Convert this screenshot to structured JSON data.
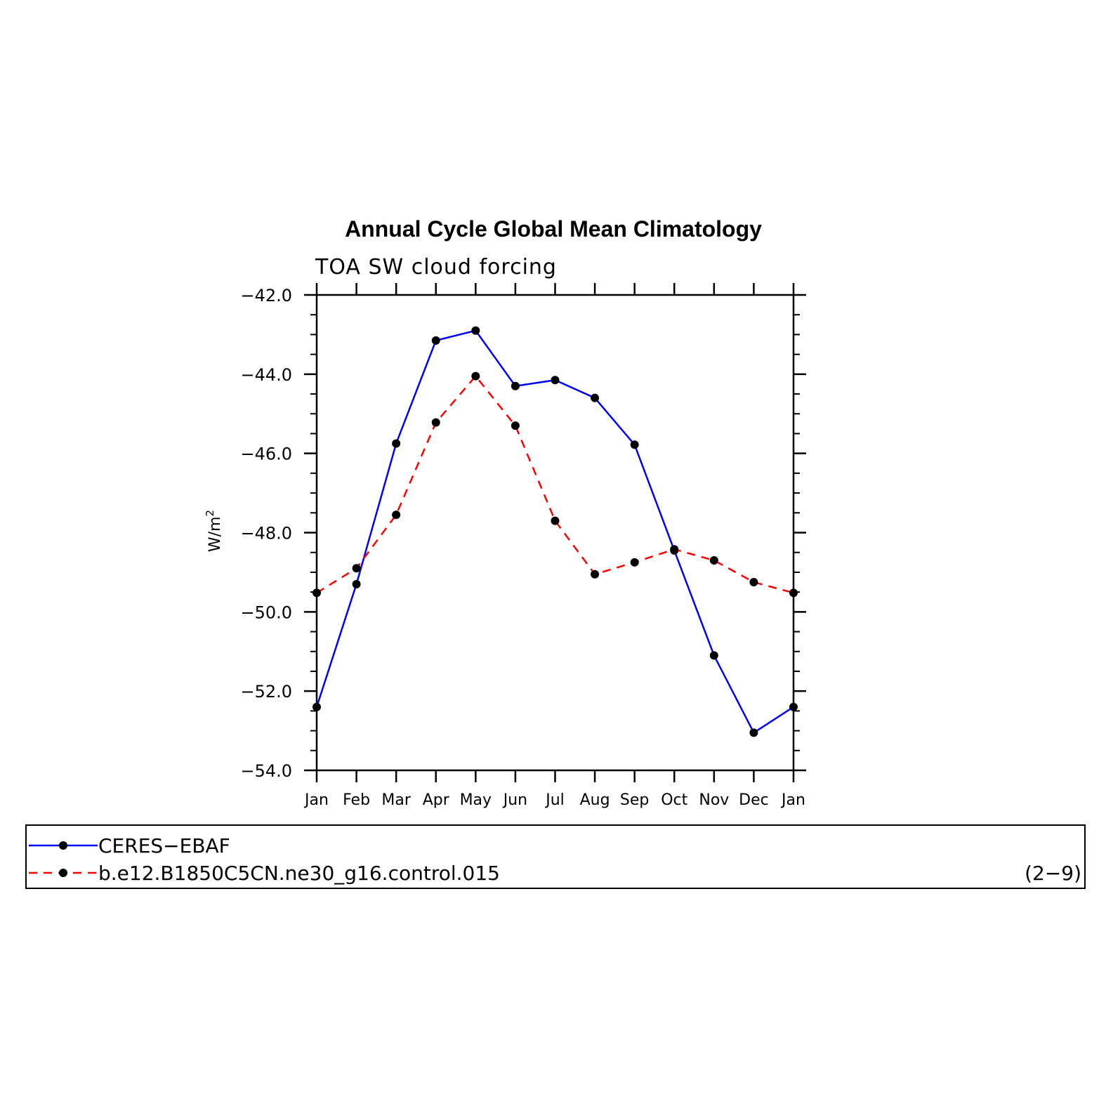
{
  "chart_data": {
    "type": "line",
    "title": "Annual Cycle Global Mean Climatology",
    "subtitle": "TOA SW cloud forcing",
    "ylabel_base": "W/m",
    "ylabel_sup": "2",
    "xlabel": "",
    "categories": [
      "Jan",
      "Feb",
      "Mar",
      "Apr",
      "May",
      "Jun",
      "Jul",
      "Aug",
      "Sep",
      "Oct",
      "Nov",
      "Dec",
      "Jan"
    ],
    "ylim": [
      -54.0,
      -42.0
    ],
    "yticks": [
      -42.0,
      -44.0,
      -46.0,
      -48.0,
      -50.0,
      -52.0,
      -54.0
    ],
    "ytick_labels": [
      "−42.0",
      "−44.0",
      "−46.0",
      "−48.0",
      "−50.0",
      "−52.0",
      "−54.0"
    ],
    "grid": false,
    "legend_position": "bottom",
    "series": [
      {
        "name": "CERES−EBAF",
        "color": "#0000ff",
        "dash": "solid",
        "values": [
          -52.4,
          -49.3,
          -45.75,
          -43.15,
          -42.9,
          -44.3,
          -44.15,
          -44.6,
          -45.78,
          -48.45,
          -51.1,
          -53.05,
          -52.4
        ]
      },
      {
        "name": "b.e12.B1850C5CN.ne30_g16.control.015",
        "color": "#ff0000",
        "dash": "dashed",
        "values": [
          -49.52,
          -48.9,
          -47.55,
          -45.22,
          -44.05,
          -45.3,
          -47.7,
          -49.05,
          -48.75,
          -48.42,
          -48.7,
          -49.25,
          -49.52
        ]
      }
    ],
    "marker_color": "#000000",
    "annotation": "(2−9)"
  }
}
